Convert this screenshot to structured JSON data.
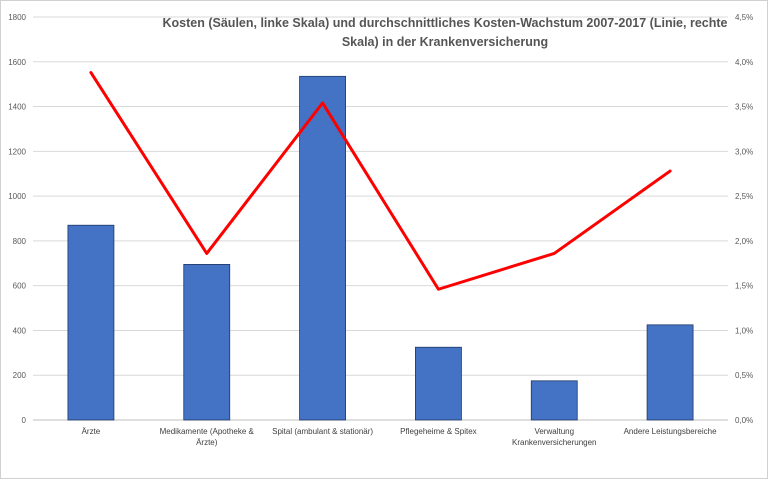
{
  "chart_data": {
    "type": "bar",
    "title": "Kosten (Säulen, linke Skala) und durchschnittliches Kosten-Wachstum 2007-2017 (Linie, rechte Skala) in der Krankenversicherung",
    "categories": [
      [
        "Ärzte"
      ],
      [
        "Medikamente (Apotheke &",
        "Ärzte)"
      ],
      [
        "Spital (ambulant & stationär)"
      ],
      [
        "Pflegeheime & Spitex"
      ],
      [
        "Verwaltung",
        "Krankenversicherungen"
      ],
      [
        "Andere Leistungsbereiche"
      ]
    ],
    "series": [
      {
        "type": "bar",
        "axis": "left",
        "color": "#4472C4",
        "values": [
          870,
          695,
          1535,
          325,
          175,
          425
        ]
      },
      {
        "type": "line",
        "axis": "right",
        "color": "#FF0000",
        "values": [
          3.88,
          1.86,
          3.54,
          1.46,
          1.86,
          2.78
        ]
      }
    ],
    "y_left": {
      "min": 0,
      "max": 1800,
      "step": 200,
      "tick_labels": [
        "0",
        "200",
        "400",
        "600",
        "800",
        "1000",
        "1200",
        "1400",
        "1600",
        "1800"
      ]
    },
    "y_right": {
      "min": 0,
      "max": 4.5,
      "step": 0.5,
      "tick_labels": [
        "0,0%",
        "0,5%",
        "1,0%",
        "1,5%",
        "2,0%",
        "2,5%",
        "3,0%",
        "3,5%",
        "4,0%",
        "4,5%"
      ]
    },
    "grid": true,
    "legend": "none"
  }
}
